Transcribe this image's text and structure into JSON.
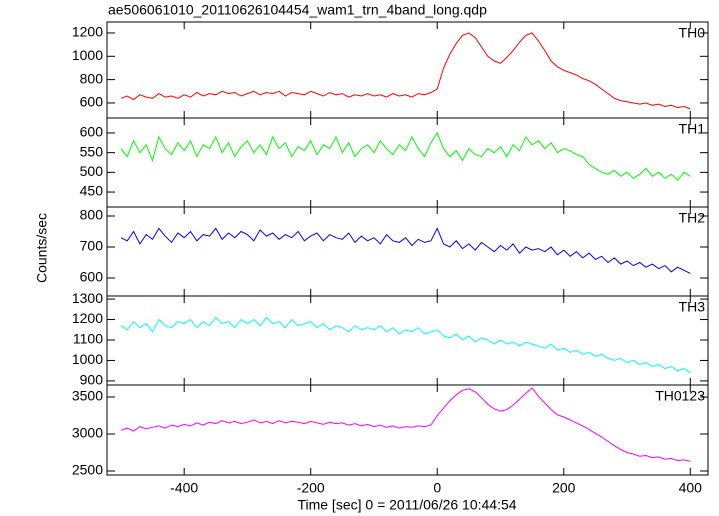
{
  "chart_data": {
    "type": "line",
    "title": "ae506061010_20110626104454_wam1_trn_4band_long.qdp",
    "xlabel": "Time [sec] 0 = 2011/06/26 10:44:54",
    "ylabel": "Counts/sec",
    "xlim": [
      -522,
      428
    ],
    "xticks": [
      -400,
      -200,
      0,
      200,
      400
    ],
    "x": [
      -500,
      -490,
      -480,
      -470,
      -460,
      -450,
      -440,
      -430,
      -420,
      -410,
      -400,
      -390,
      -380,
      -370,
      -360,
      -350,
      -340,
      -330,
      -320,
      -310,
      -300,
      -290,
      -280,
      -270,
      -260,
      -250,
      -240,
      -230,
      -220,
      -210,
      -200,
      -190,
      -180,
      -170,
      -160,
      -150,
      -140,
      -130,
      -120,
      -110,
      -100,
      -90,
      -80,
      -70,
      -60,
      -50,
      -40,
      -30,
      -20,
      -10,
      0,
      10,
      20,
      30,
      40,
      50,
      60,
      70,
      80,
      90,
      100,
      110,
      120,
      130,
      140,
      150,
      160,
      170,
      180,
      190,
      200,
      210,
      220,
      230,
      240,
      250,
      260,
      270,
      280,
      290,
      300,
      310,
      320,
      330,
      340,
      350,
      360,
      370,
      380,
      390,
      400
    ],
    "panels": [
      {
        "name": "TH0",
        "color": "#ff0000",
        "ylim": [
          471,
          1294
        ],
        "yticks": [
          600,
          800,
          1000,
          1200
        ],
        "values": [
          640,
          660,
          630,
          670,
          650,
          640,
          680,
          650,
          660,
          640,
          670,
          650,
          690,
          660,
          680,
          670,
          700,
          680,
          690,
          660,
          680,
          700,
          670,
          690,
          680,
          700,
          660,
          690,
          680,
          670,
          700,
          680,
          660,
          690,
          670,
          680,
          650,
          670,
          660,
          680,
          660,
          670,
          650,
          680,
          660,
          670,
          650,
          680,
          670,
          690,
          720,
          900,
          1020,
          1110,
          1180,
          1200,
          1160,
          1080,
          1000,
          960,
          940,
          990,
          1050,
          1120,
          1180,
          1200,
          1130,
          1050,
          960,
          910,
          880,
          860,
          840,
          810,
          790,
          760,
          720,
          680,
          640,
          620,
          610,
          600,
          590,
          600,
          580,
          590,
          570,
          580,
          560,
          570,
          550
        ]
      },
      {
        "name": "TH1",
        "color": "#00ff00",
        "ylim": [
          412,
          638
        ],
        "yticks": [
          450,
          500,
          550,
          600
        ],
        "values": [
          560,
          540,
          580,
          550,
          570,
          530,
          590,
          560,
          545,
          575,
          555,
          580,
          540,
          570,
          560,
          590,
          550,
          575,
          540,
          565,
          580,
          550,
          570,
          545,
          590,
          560,
          575,
          540,
          565,
          555,
          580,
          545,
          570,
          560,
          590,
          550,
          575,
          540,
          560,
          570,
          550,
          580,
          560,
          545,
          570,
          555,
          590,
          560,
          540,
          575,
          600,
          560,
          540,
          555,
          530,
          560,
          545,
          540,
          560,
          550,
          565,
          540,
          570,
          555,
          590,
          570,
          580,
          560,
          575,
          550,
          560,
          555,
          545,
          540,
          520,
          510,
          500,
          495,
          505,
          490,
          500,
          485,
          495,
          510,
          490,
          500,
          485,
          495,
          480,
          500,
          490
        ]
      },
      {
        "name": "TH2",
        "color": "#0000ff",
        "ylim": [
          542,
          829
        ],
        "yticks": [
          600,
          700,
          800
        ],
        "values": [
          730,
          720,
          750,
          710,
          740,
          725,
          760,
          735,
          715,
          745,
          730,
          750,
          720,
          740,
          735,
          760,
          725,
          745,
          730,
          750,
          740,
          720,
          755,
          735,
          745,
          725,
          740,
          730,
          750,
          720,
          735,
          745,
          720,
          740,
          730,
          725,
          745,
          715,
          735,
          720,
          730,
          710,
          740,
          720,
          715,
          730,
          705,
          725,
          715,
          720,
          760,
          710,
          700,
          720,
          695,
          710,
          690,
          715,
          700,
          685,
          705,
          690,
          710,
          680,
          700,
          690,
          695,
          685,
          700,
          675,
          690,
          670,
          685,
          665,
          680,
          660,
          670,
          650,
          665,
          645,
          655,
          640,
          650,
          635,
          645,
          630,
          640,
          620,
          635,
          625,
          615
        ]
      },
      {
        "name": "TH3",
        "color": "#00ffff",
        "ylim": [
          880,
          1315
        ],
        "yticks": [
          900,
          1000,
          1100,
          1200,
          1300
        ],
        "values": [
          1170,
          1150,
          1190,
          1160,
          1180,
          1140,
          1200,
          1170,
          1160,
          1190,
          1180,
          1200,
          1160,
          1190,
          1170,
          1210,
          1180,
          1190,
          1160,
          1200,
          1180,
          1200,
          1170,
          1210,
          1180,
          1190,
          1160,
          1200,
          1170,
          1180,
          1190,
          1160,
          1180,
          1150,
          1170,
          1160,
          1140,
          1170,
          1150,
          1160,
          1150,
          1170,
          1140,
          1160,
          1130,
          1150,
          1140,
          1160,
          1130,
          1140,
          1150,
          1120,
          1110,
          1130,
          1100,
          1120,
          1090,
          1110,
          1100,
          1080,
          1100,
          1080,
          1090,
          1070,
          1090,
          1080,
          1070,
          1060,
          1080,
          1050,
          1060,
          1040,
          1050,
          1030,
          1040,
          1020,
          1030,
          1010,
          1000,
          1010,
          990,
          1000,
          980,
          990,
          970,
          980,
          960,
          970,
          950,
          960,
          940
        ]
      },
      {
        "name": "TH0123",
        "color": "#ff00ff",
        "ylim": [
          2446,
          3662
        ],
        "yticks": [
          2500,
          3000,
          3500
        ],
        "values": [
          3050,
          3080,
          3040,
          3100,
          3070,
          3090,
          3110,
          3080,
          3120,
          3100,
          3130,
          3110,
          3150,
          3120,
          3160,
          3140,
          3180,
          3150,
          3170,
          3140,
          3160,
          3190,
          3150,
          3170,
          3140,
          3180,
          3150,
          3170,
          3160,
          3140,
          3170,
          3150,
          3130,
          3160,
          3140,
          3150,
          3120,
          3140,
          3110,
          3130,
          3100,
          3120,
          3090,
          3110,
          3080,
          3100,
          3090,
          3110,
          3100,
          3120,
          3250,
          3350,
          3450,
          3530,
          3590,
          3610,
          3570,
          3490,
          3400,
          3340,
          3310,
          3330,
          3390,
          3470,
          3550,
          3620,
          3510,
          3420,
          3330,
          3260,
          3230,
          3190,
          3150,
          3110,
          3060,
          3010,
          2960,
          2900,
          2840,
          2790,
          2750,
          2730,
          2700,
          2710,
          2680,
          2690,
          2660,
          2670,
          2640,
          2650,
          2630
        ]
      }
    ]
  }
}
